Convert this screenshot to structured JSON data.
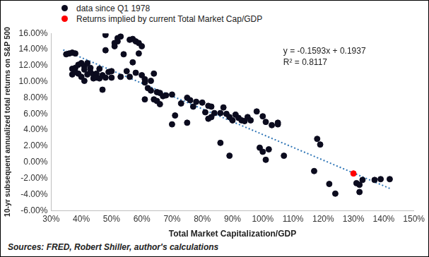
{
  "chart_data": {
    "type": "scatter",
    "x_label": "Total Market Capitalization/GDP",
    "y_label": "10-yr subsequent annualized total returns on S&P 500",
    "annotations": [
      "y = -0.1593x + 0.1937",
      "R² = 0.8117"
    ],
    "source": "Sources: FRED, Robert Shiller, author's calculations",
    "legend": "top left",
    "grid": false,
    "xlim": [
      30,
      150
    ],
    "xticks": [
      {
        "value": 30,
        "label": "30%"
      },
      {
        "value": 40,
        "label": "40%"
      },
      {
        "value": 50,
        "label": "50%"
      },
      {
        "value": 60,
        "label": "60%"
      },
      {
        "value": 70,
        "label": "70%"
      },
      {
        "value": 80,
        "label": "80%"
      },
      {
        "value": 90,
        "label": "90%"
      },
      {
        "value": 100,
        "label": "100%"
      },
      {
        "value": 110,
        "label": "110%"
      },
      {
        "value": 120,
        "label": "120%"
      },
      {
        "value": 130,
        "label": "130%"
      },
      {
        "value": 140,
        "label": "140%"
      },
      {
        "value": 150,
        "label": "150%"
      }
    ],
    "ylim": [
      -6,
      16
    ],
    "yticks": [
      {
        "value": -6,
        "label": "-6.00%"
      },
      {
        "value": -4,
        "label": "-4.00%"
      },
      {
        "value": -2,
        "label": "-2.00%"
      },
      {
        "value": 0,
        "label": "0.00%"
      },
      {
        "value": 2,
        "label": "2.00%"
      },
      {
        "value": 4,
        "label": "4.00%"
      },
      {
        "value": 6,
        "label": "6.00%"
      },
      {
        "value": 8,
        "label": "8.00%"
      },
      {
        "value": 10,
        "label": "10.00%"
      },
      {
        "value": 12,
        "label": "12.00%"
      },
      {
        "value": 14,
        "label": "14.00%"
      },
      {
        "value": 16,
        "label": "16.00%"
      }
    ],
    "series": [
      {
        "name": "data since Q1 1978",
        "color": "#0b0b1e",
        "marker": "circle",
        "x": [
          35,
          36,
          37,
          38,
          37,
          37,
          38,
          38,
          39,
          39,
          40,
          40,
          41,
          41,
          41,
          42,
          42,
          43,
          43,
          44,
          44,
          45,
          45,
          46,
          46,
          47,
          47,
          48,
          48,
          48,
          49,
          50,
          50,
          51,
          51,
          52,
          52,
          53,
          53,
          54,
          55,
          56,
          56,
          57,
          57,
          58,
          58,
          59,
          59,
          60,
          60,
          61,
          61,
          61,
          62,
          63,
          63,
          64,
          64,
          65,
          65,
          66,
          66,
          67,
          68,
          70,
          70,
          71,
          73,
          75,
          75,
          76,
          77,
          78,
          80,
          81,
          82,
          82,
          83,
          83,
          84,
          86,
          86,
          87,
          88,
          89,
          89,
          90,
          91,
          92,
          93,
          94,
          95,
          96,
          98,
          99,
          100,
          100,
          101,
          101,
          102,
          103,
          105,
          105,
          107,
          117,
          118,
          119,
          122,
          124,
          131,
          132,
          132,
          133,
          137,
          139,
          142
        ],
        "values": [
          13.4,
          13.5,
          13.6,
          13.5,
          11.6,
          10.9,
          11.2,
          11.7,
          12.1,
          11,
          10.6,
          12.3,
          11.9,
          10.1,
          11.5,
          12.3,
          10.9,
          11.2,
          11.7,
          10.9,
          10.4,
          11,
          10.5,
          11.6,
          10.4,
          10.8,
          9,
          15.8,
          13.9,
          10.5,
          11.2,
          11.3,
          10.5,
          14.8,
          14.4,
          15,
          15.4,
          15.6,
          10.6,
          13.4,
          11.3,
          15.2,
          10.6,
          12.4,
          15.3,
          15,
          11.1,
          14.8,
          13.5,
          14.4,
          10.8,
          7.8,
          9.9,
          10.3,
          9.2,
          10.1,
          8.9,
          7.8,
          11,
          8.7,
          7.6,
          8.6,
          7.2,
          8.2,
          8.3,
          4.7,
          8.4,
          5.8,
          7.3,
          4.9,
          8,
          7.7,
          6.9,
          7.5,
          7.4,
          6.2,
          7,
          5.4,
          6.9,
          5.6,
          6.1,
          6.1,
          2.4,
          6.8,
          6,
          0.8,
          5.6,
          5.2,
          5.9,
          5.5,
          5.2,
          5.1,
          5.6,
          5.2,
          6.3,
          1.8,
          5.7,
          1.3,
          0.3,
          5,
          1.6,
          4.6,
          4.9,
          4.7,
          0.8,
          -1.1,
          2.9,
          2.2,
          -2.7,
          -3.9,
          -2.6,
          -3.7,
          -2.8,
          -2.2,
          -2.2,
          -2.1,
          -2.1
        ]
      },
      {
        "name": "Returns implied by current Total Market Cap/GDP",
        "color": "#ff0000",
        "marker": "circle",
        "x": [
          130
        ],
        "values": [
          -1.4
        ]
      }
    ],
    "trendline": {
      "color": "#2e75b6",
      "line_style": "dotted",
      "x": [
        34,
        142
      ],
      "values": [
        13.95,
        -3.25
      ]
    }
  }
}
